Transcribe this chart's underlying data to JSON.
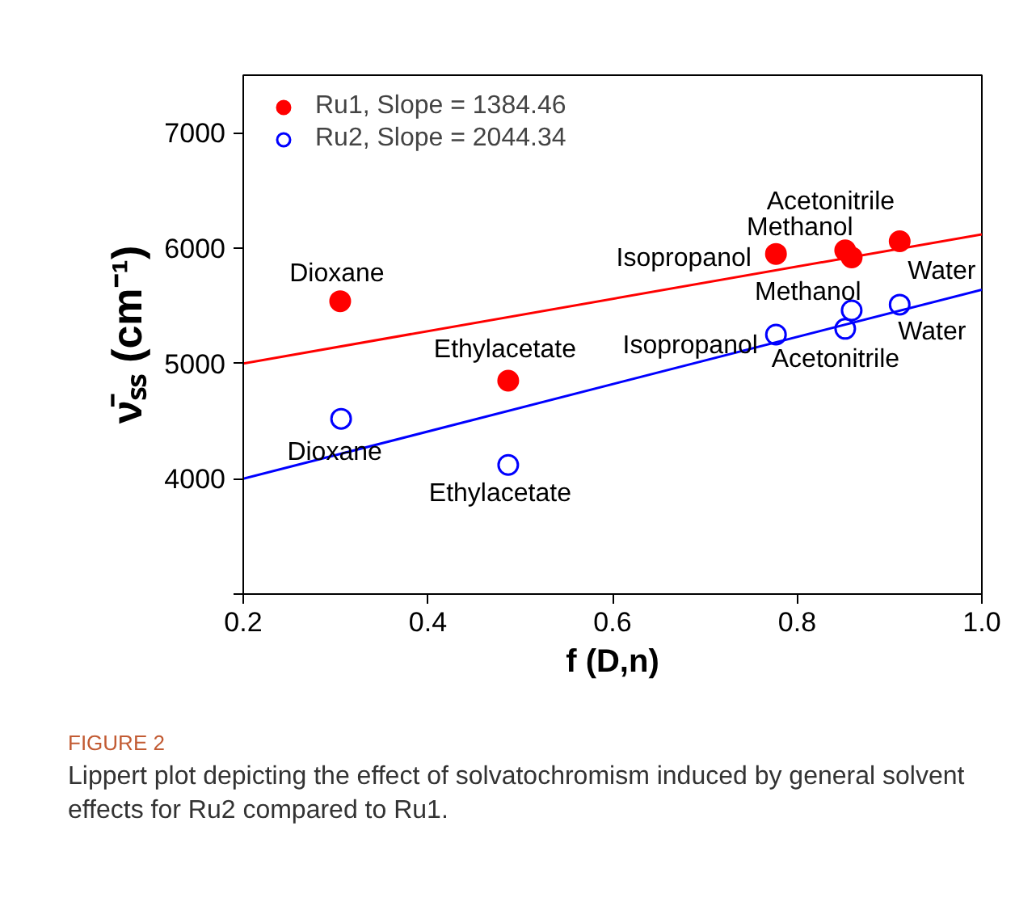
{
  "chart_data": {
    "type": "scatter",
    "xlabel": "f (D,n)",
    "ylabel": "ν̄ₛₛ (cm⁻¹)",
    "xlim": [
      0.2,
      1.0
    ],
    "ylim": [
      3000,
      7500
    ],
    "xticks": [
      0.2,
      0.4,
      0.6,
      0.8,
      {
        "value": 1.0,
        "label": "1.0"
      }
    ],
    "yticks": [
      {
        "value": 3000,
        "label": null
      },
      4000,
      5000,
      6000,
      7000
    ],
    "legend": "top left",
    "grid": false,
    "series": [
      {
        "name": "Ru1, Slope = 1384.46",
        "color": "#ff0000",
        "marker": "circle",
        "x": [
          0.305,
          0.487,
          0.777,
          0.852,
          0.859,
          0.911
        ],
        "values": [
          5540,
          4850,
          5950,
          5980,
          5920,
          6060
        ]
      },
      {
        "name": "Ru2, Slope = 2044.34",
        "color": "#0000ff",
        "marker": "circle_open",
        "x": [
          0.306,
          0.487,
          0.777,
          0.852,
          0.859,
          0.911
        ],
        "values": [
          4520,
          4120,
          5250,
          5300,
          5460,
          5510
        ]
      },
      {
        "type": "line",
        "color": "#ff0000",
        "x": [
          0.2,
          1.0
        ],
        "values": [
          5000,
          6120
        ]
      },
      {
        "type": "line",
        "color": "#0000ff",
        "x": [
          0.2,
          1.0
        ],
        "values": [
          4000,
          5640
        ]
      }
    ],
    "annotations": [
      {
        "text": "Dioxane",
        "x": 0.305,
        "y": 5540
      },
      {
        "text": "Ethylacetate",
        "x": 0.487,
        "y": 4850
      },
      {
        "text": "Isopropanol",
        "x": 0.777,
        "y": 5950
      },
      {
        "text": "Acetonitrile",
        "x": 0.852,
        "y": 5980
      },
      {
        "text": "Methanol",
        "x": 0.859,
        "y": 5920
      },
      {
        "text": "Water",
        "x": 0.911,
        "y": 6060
      },
      {
        "text": "Methanol",
        "x": 0.859,
        "y": 5460
      },
      {
        "text": "Water",
        "x": 0.911,
        "y": 5510
      },
      {
        "text": "Isopropanol",
        "x": 0.777,
        "y": 5250
      },
      {
        "text": "Acetonitrile",
        "x": 0.852,
        "y": 5300
      },
      {
        "text": "Dioxane",
        "x": 0.306,
        "y": 4520
      },
      {
        "text": "Ethylacetate",
        "x": 0.487,
        "y": 4120
      },
      "FIGURE 2",
      "Lippert plot depicting the effect of solvatochromism induced by general solvent effects for Ru2 compared to Ru1."
    ]
  }
}
